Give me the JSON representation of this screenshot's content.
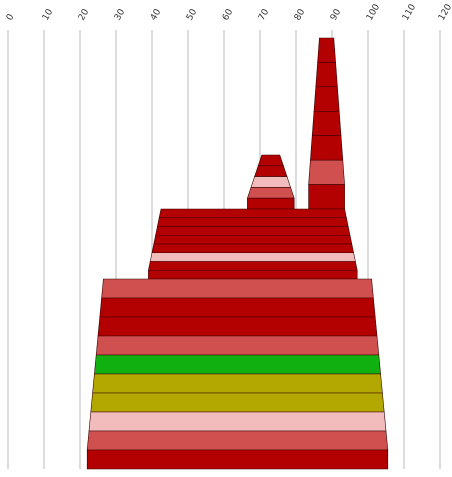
{
  "chart_data": {
    "type": "area",
    "title": "",
    "xlabel": "",
    "ylabel": "",
    "xlim": [
      0,
      120
    ],
    "x_ticks": [
      "0",
      "10",
      "20",
      "30",
      "40",
      "50",
      "60",
      "70",
      "80",
      "90",
      "100",
      "110",
      "120"
    ],
    "grid": "vertical",
    "legend": "none",
    "series": [
      {
        "bands": [
          {
            "left": 86.5,
            "right": 90.5,
            "color": "#b30000"
          },
          {
            "left": 86.0,
            "right": 91.0,
            "color": "#b30000"
          },
          {
            "left": 85.5,
            "right": 91.5,
            "color": "#b30000"
          },
          {
            "left": 85.0,
            "right": 92.0,
            "color": "#b30000"
          },
          {
            "left": 84.5,
            "right": 92.5,
            "color": "#b30000"
          },
          {
            "left": 84.0,
            "right": 93.0,
            "color": "#d05050"
          },
          {
            "left": 83.5,
            "right": 93.5,
            "color": "#b30000"
          }
        ]
      },
      {
        "bands": [
          {
            "left": 70.5,
            "right": 75.5,
            "color": "#b30000"
          },
          {
            "left": 69.5,
            "right": 76.5,
            "color": "#b30000"
          },
          {
            "left": 68.5,
            "right": 77.5,
            "color": "#f2bcbc"
          },
          {
            "left": 67.5,
            "right": 78.5,
            "color": "#d05050"
          },
          {
            "left": 66.5,
            "right": 79.5,
            "color": "#b30000"
          }
        ]
      },
      {
        "bands": [
          {
            "left": 42.5,
            "right": 93.5,
            "color": "#b30000"
          },
          {
            "left": 42.0,
            "right": 94.0,
            "color": "#b30000"
          },
          {
            "left": 41.5,
            "right": 94.5,
            "color": "#b30000"
          },
          {
            "left": 41.0,
            "right": 95.0,
            "color": "#b30000"
          },
          {
            "left": 40.5,
            "right": 95.5,
            "color": "#b30000"
          },
          {
            "left": 40.0,
            "right": 96.0,
            "color": "#f2bcbc"
          },
          {
            "left": 39.5,
            "right": 96.5,
            "color": "#b30000"
          },
          {
            "left": 39.0,
            "right": 97.0,
            "color": "#b30000"
          }
        ]
      },
      {
        "bands": [
          {
            "left": 26.5,
            "right": 101.0,
            "color": "#d05050"
          },
          {
            "left": 26.0,
            "right": 101.5,
            "color": "#b30000"
          },
          {
            "left": 25.5,
            "right": 102.0,
            "color": "#b30000"
          },
          {
            "left": 25.0,
            "right": 102.5,
            "color": "#d05050"
          },
          {
            "left": 24.5,
            "right": 103.0,
            "color": "#10b010"
          },
          {
            "left": 24.0,
            "right": 103.5,
            "color": "#b3a800"
          },
          {
            "left": 23.5,
            "right": 104.0,
            "color": "#b3a800"
          },
          {
            "left": 23.0,
            "right": 104.5,
            "color": "#f2bcbc"
          },
          {
            "left": 22.5,
            "right": 105.0,
            "color": "#d05050"
          },
          {
            "left": 22.0,
            "right": 105.5,
            "color": "#b30000"
          }
        ]
      }
    ]
  }
}
